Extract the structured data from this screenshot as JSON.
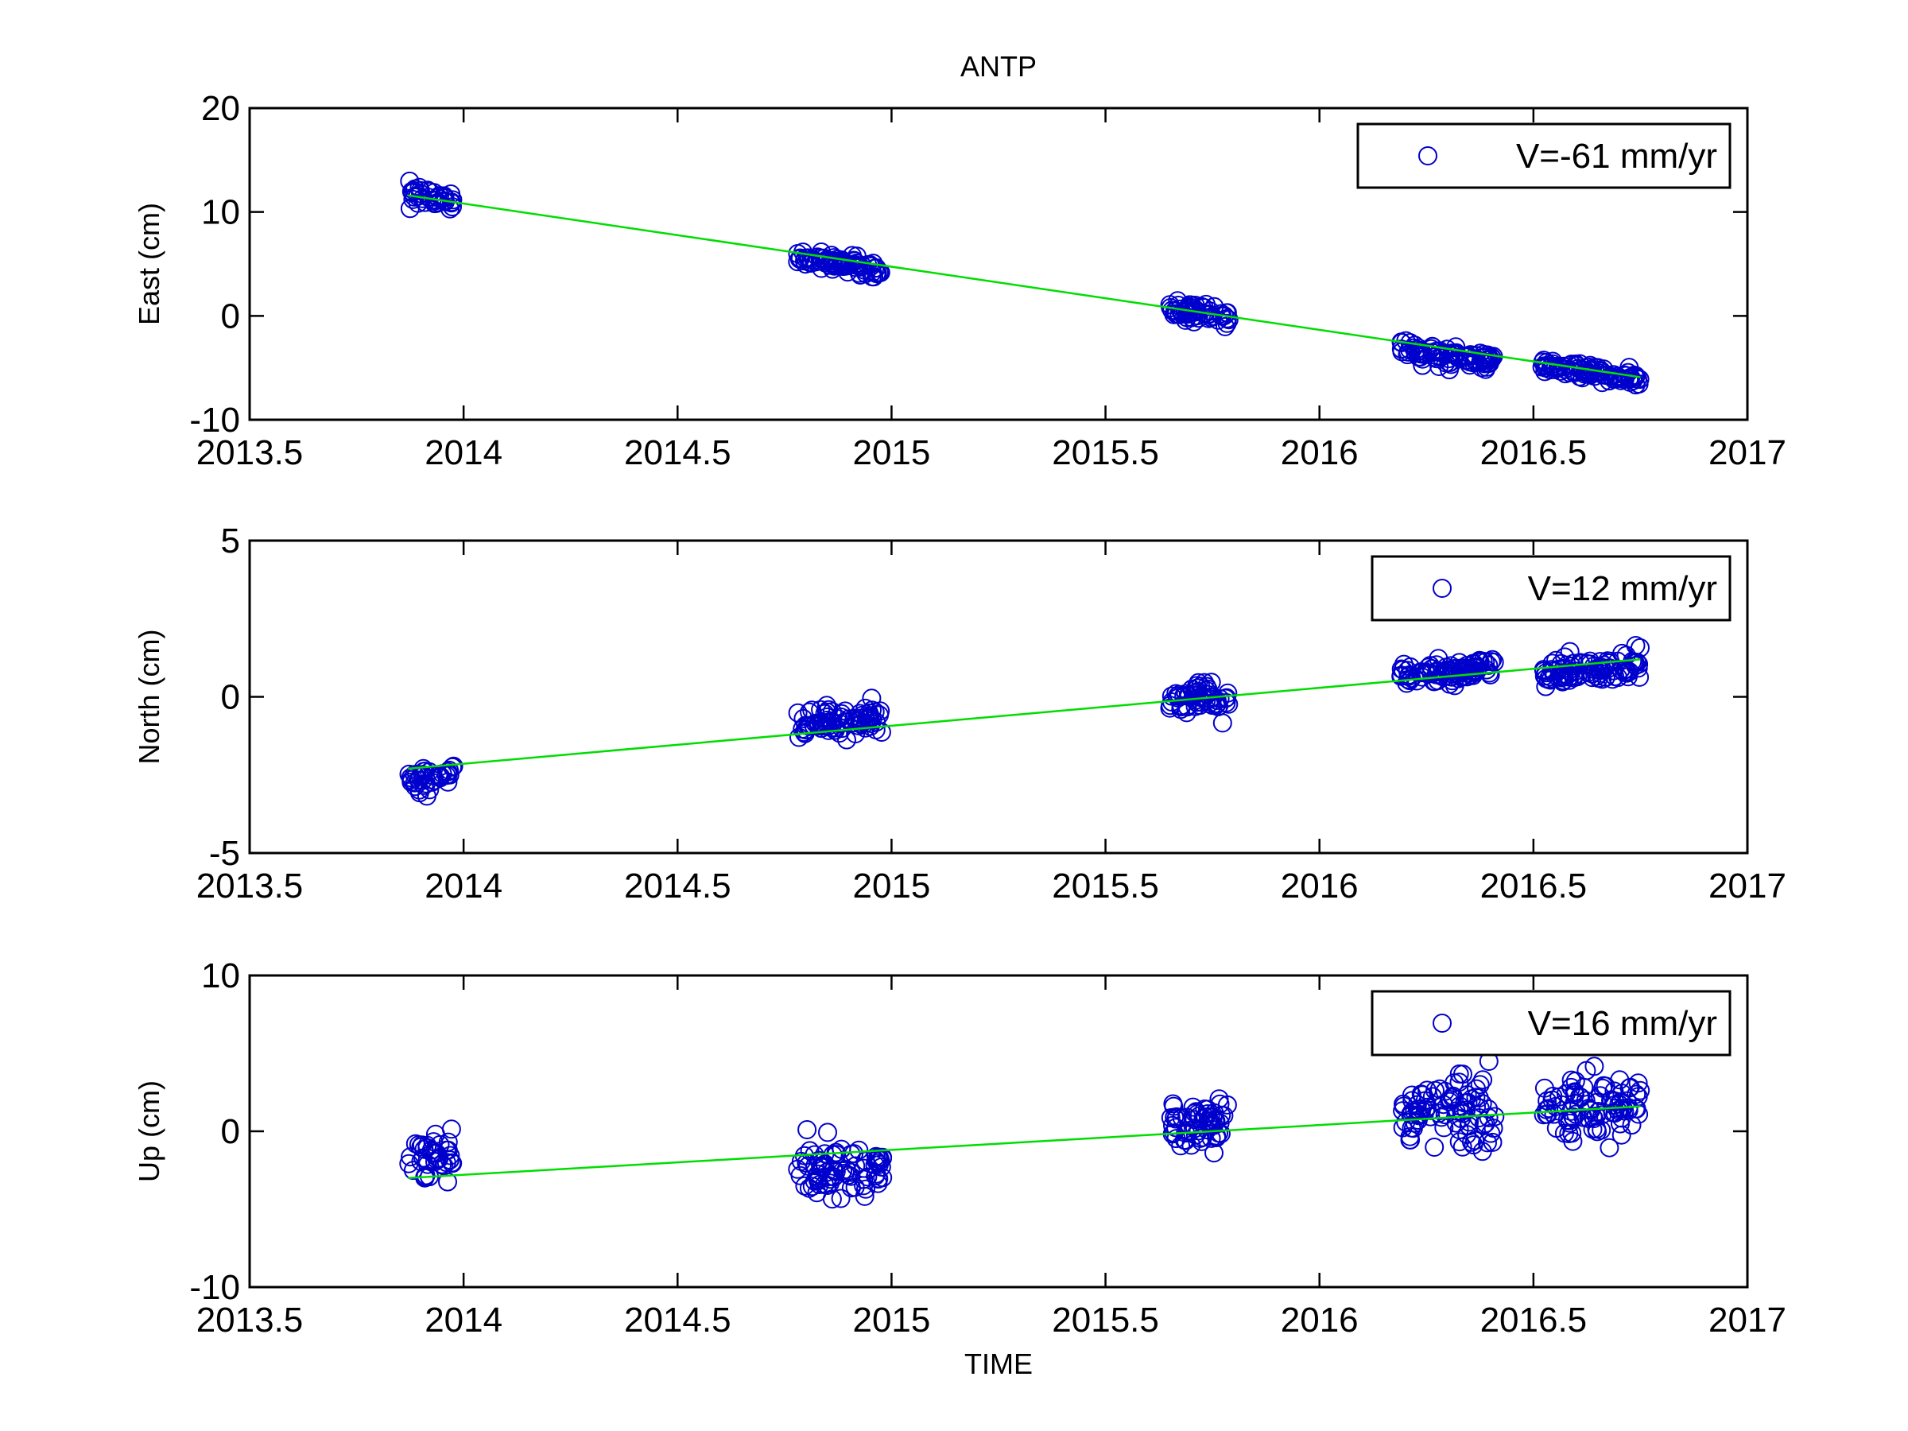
{
  "chart_data": {
    "title": "ANTP",
    "xlabel": "TIME",
    "colors": {
      "points": "#0000cc",
      "fit": "#00dd00",
      "axes": "#000000"
    },
    "panels": [
      {
        "type": "scatter",
        "ylabel": "East (cm)",
        "legend": "V=-61 mm/yr",
        "legend_position": "top-right",
        "xlim": [
          2013.5,
          2017
        ],
        "ylim": [
          -10,
          20
        ],
        "xticks": [
          "2013.5",
          "2014",
          "2014.5",
          "2015",
          "2015.5",
          "2016",
          "2016.5",
          "2017"
        ],
        "yticks": [
          "-10",
          "0",
          "10",
          "20"
        ],
        "fit": {
          "x": [
            2013.87,
            2016.75
          ],
          "y": [
            11.6,
            -5.9
          ]
        },
        "clusters": [
          {
            "x_range": [
              2013.87,
              2013.98
            ],
            "center": 11.3,
            "spread": 0.8,
            "n": 40
          },
          {
            "x_range": [
              2014.78,
              2014.98
            ],
            "center": 5.0,
            "spread": 0.7,
            "n": 80
          },
          {
            "x_range": [
              2015.65,
              2015.79
            ],
            "center": 0.3,
            "spread": 0.8,
            "n": 60
          },
          {
            "x_range": [
              2016.19,
              2016.41
            ],
            "center": -3.8,
            "spread": 0.8,
            "n": 90
          },
          {
            "x_range": [
              2016.52,
              2016.75
            ],
            "center": -5.4,
            "spread": 0.6,
            "n": 90
          }
        ]
      },
      {
        "type": "scatter",
        "ylabel": "North (cm)",
        "legend": "V=12 mm/yr",
        "legend_position": "top-right",
        "xlim": [
          2013.5,
          2017
        ],
        "ylim": [
          -5,
          5
        ],
        "xticks": [
          "2013.5",
          "2014",
          "2014.5",
          "2015",
          "2015.5",
          "2016",
          "2016.5",
          "2017"
        ],
        "yticks": [
          "-5",
          "0",
          "5"
        ],
        "fit": {
          "x": [
            2013.87,
            2016.75
          ],
          "y": [
            -2.3,
            1.2
          ]
        },
        "clusters": [
          {
            "x_range": [
              2013.87,
              2013.98
            ],
            "center": -2.6,
            "spread": 0.4,
            "n": 40
          },
          {
            "x_range": [
              2014.78,
              2014.98
            ],
            "center": -0.8,
            "spread": 0.4,
            "n": 80
          },
          {
            "x_range": [
              2015.65,
              2015.79
            ],
            "center": -0.1,
            "spread": 0.4,
            "n": 60
          },
          {
            "x_range": [
              2016.19,
              2016.41
            ],
            "center": 0.8,
            "spread": 0.3,
            "n": 90
          },
          {
            "x_range": [
              2016.52,
              2016.75
            ],
            "center": 0.9,
            "spread": 0.4,
            "n": 90
          }
        ]
      },
      {
        "type": "scatter",
        "ylabel": "Up (cm)",
        "legend": "V=16 mm/yr",
        "legend_position": "top-right",
        "xlim": [
          2013.5,
          2017
        ],
        "ylim": [
          -10,
          10
        ],
        "xticks": [
          "2013.5",
          "2014",
          "2014.5",
          "2015",
          "2015.5",
          "2016",
          "2016.5",
          "2017"
        ],
        "yticks": [
          "-10",
          "0",
          "10"
        ],
        "fit": {
          "x": [
            2013.87,
            2016.75
          ],
          "y": [
            -3.0,
            1.6
          ]
        },
        "clusters": [
          {
            "x_range": [
              2013.87,
              2013.98
            ],
            "center": -1.8,
            "spread": 1.2,
            "n": 40
          },
          {
            "x_range": [
              2014.78,
              2014.98
            ],
            "center": -2.4,
            "spread": 1.6,
            "n": 80
          },
          {
            "x_range": [
              2015.65,
              2015.79
            ],
            "center": 0.3,
            "spread": 1.4,
            "n": 60
          },
          {
            "x_range": [
              2016.19,
              2016.41
            ],
            "center": 1.0,
            "spread": 1.8,
            "n": 90
          },
          {
            "x_range": [
              2016.52,
              2016.75
            ],
            "center": 1.6,
            "spread": 1.7,
            "n": 90
          }
        ]
      }
    ]
  }
}
